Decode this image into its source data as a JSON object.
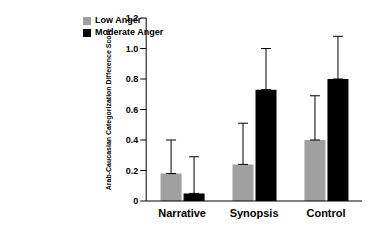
{
  "chart_data": {
    "type": "bar",
    "categories": [
      "Narrative",
      "Synopsis",
      "Control"
    ],
    "series": [
      {
        "name": "Low Anger",
        "color": "#a0a0a0",
        "values": [
          0.18,
          0.24,
          0.4
        ],
        "errors": [
          0.22,
          0.27,
          0.29
        ]
      },
      {
        "name": "Moderate Anger",
        "color": "#000000",
        "values": [
          0.05,
          0.73,
          0.8
        ],
        "errors": [
          0.24,
          0.27,
          0.28
        ]
      }
    ],
    "y_label": "Arab-Caucasian Categorization Difference Score",
    "ylim": [
      0,
      1.2
    ],
    "yticks": [
      0,
      0.2,
      0.4,
      0.6,
      0.8,
      {
        "value": 1,
        "label": "1.0"
      },
      {
        "value": 1.2,
        "label": "1.2"
      }
    ],
    "legend": "upper left",
    "grid": false
  }
}
